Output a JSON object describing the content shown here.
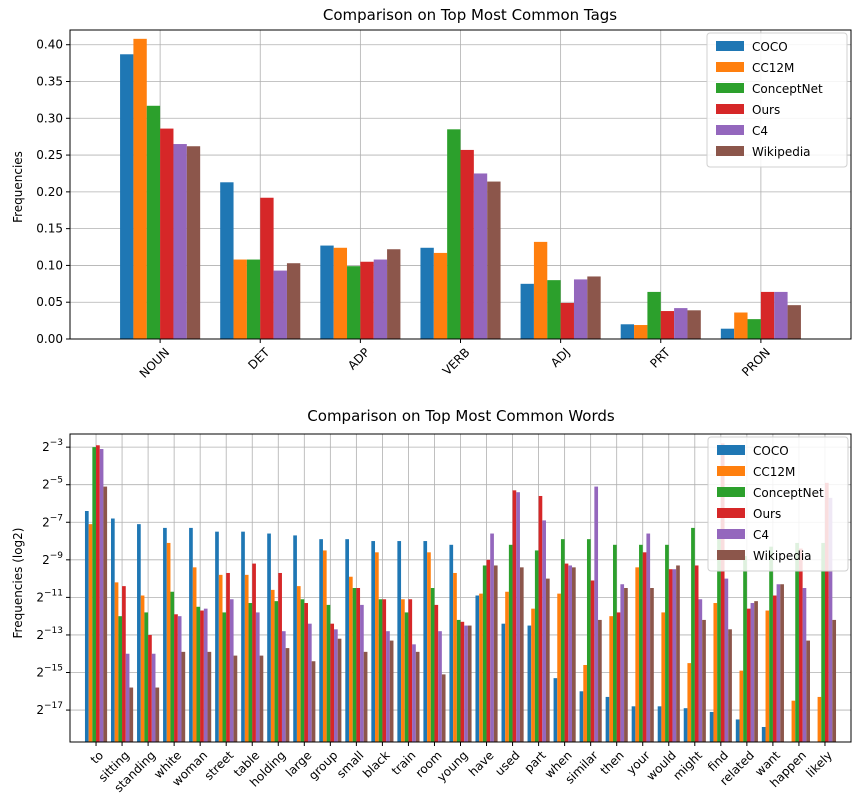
{
  "chart_data": [
    {
      "type": "bar",
      "title": "Comparison on Top Most Common Tags",
      "xlabel": "",
      "ylabel": "Frequencies",
      "categories": [
        "NOUN",
        "DET",
        "ADP",
        "VERB",
        "ADJ",
        "PRT",
        "PRON"
      ],
      "ylim": [
        0,
        0.42
      ],
      "yticks": [
        0.0,
        0.05,
        0.1,
        0.15,
        0.2,
        0.25,
        0.3,
        0.35,
        0.4
      ],
      "ytick_labels": [
        "0.00",
        "0.05",
        "0.10",
        "0.15",
        "0.20",
        "0.25",
        "0.30",
        "0.35",
        "0.40"
      ],
      "grid": true,
      "legend": "top-right",
      "series": [
        {
          "name": "COCO",
          "color": "#1f77b4",
          "values": [
            0.387,
            0.213,
            0.127,
            0.124,
            0.075,
            0.02,
            0.014
          ]
        },
        {
          "name": "CC12M",
          "color": "#ff7f0e",
          "values": [
            0.408,
            0.108,
            0.124,
            0.117,
            0.132,
            0.019,
            0.036
          ]
        },
        {
          "name": "ConceptNet",
          "color": "#2ca02c",
          "values": [
            0.317,
            0.108,
            0.099,
            0.285,
            0.08,
            0.064,
            0.027
          ]
        },
        {
          "name": "Ours",
          "color": "#d62728",
          "values": [
            0.286,
            0.192,
            0.105,
            0.257,
            0.049,
            0.038,
            0.064
          ]
        },
        {
          "name": "C4",
          "color": "#9467bd",
          "values": [
            0.265,
            0.093,
            0.108,
            0.225,
            0.081,
            0.042,
            0.064
          ]
        },
        {
          "name": "Wikipedia",
          "color": "#8c564b",
          "values": [
            0.262,
            0.103,
            0.122,
            0.214,
            0.085,
            0.039,
            0.046
          ]
        }
      ]
    },
    {
      "type": "bar",
      "title": "Comparison on Top Most Common Words",
      "xlabel": "",
      "ylabel": "Frequencies (log2)",
      "yscale": "log2",
      "categories": [
        "to",
        "sitting",
        "standing",
        "white",
        "woman",
        "street",
        "table",
        "holding",
        "large",
        "group",
        "small",
        "black",
        "train",
        "room",
        "young",
        "have",
        "used",
        "part",
        "when",
        "similar",
        "then",
        "your",
        "would",
        "might",
        "find",
        "related",
        "want",
        "happen",
        "likely"
      ],
      "ylim_exponent": [
        -18.7,
        -2.3
      ],
      "ytick_exponents": [
        -3,
        -5,
        -7,
        -9,
        -11,
        -13,
        -15,
        -17
      ],
      "ytick_base": "2",
      "grid": true,
      "legend": "top-right",
      "series_exponents_note": "values are log2 of frequency",
      "series": [
        {
          "name": "COCO",
          "color": "#1f77b4",
          "values": [
            -6.4,
            -6.8,
            -7.1,
            -7.3,
            -7.3,
            -7.5,
            -7.5,
            -7.6,
            -7.7,
            -7.9,
            -7.9,
            -8.0,
            -8.0,
            -8.0,
            -8.2,
            -10.9,
            -12.4,
            -12.5,
            -15.3,
            -16.0,
            -16.3,
            -16.8,
            -16.8,
            -16.9,
            -17.1,
            -17.5,
            -17.9,
            -18.9,
            -18.9
          ]
        },
        {
          "name": "CC12M",
          "color": "#ff7f0e",
          "values": [
            -7.1,
            -10.2,
            -10.9,
            -8.1,
            -9.4,
            -9.8,
            -9.8,
            -10.6,
            -10.4,
            -8.5,
            -9.9,
            -8.6,
            -11.1,
            -8.6,
            -9.7,
            -10.8,
            -10.7,
            -11.6,
            -10.8,
            -14.6,
            -12.0,
            -9.4,
            -11.8,
            -14.5,
            -11.3,
            -14.9,
            -11.7,
            -16.5,
            -16.3
          ]
        },
        {
          "name": "ConceptNet",
          "color": "#2ca02c",
          "values": [
            -3.0,
            -12.0,
            -11.8,
            -10.7,
            -11.5,
            -11.8,
            -11.3,
            -11.2,
            -11.1,
            -11.4,
            -10.5,
            -11.1,
            -11.8,
            -10.5,
            -12.2,
            -9.3,
            -8.2,
            -8.5,
            -7.9,
            -7.9,
            -8.2,
            -8.2,
            -8.2,
            -7.3,
            -7.4,
            -8.8,
            -8.3,
            -8.1,
            -8.1
          ]
        },
        {
          "name": "Ours",
          "color": "#d62728",
          "values": [
            -2.9,
            -10.4,
            -13.0,
            -11.9,
            -11.7,
            -9.7,
            -9.2,
            -9.7,
            -11.3,
            -12.4,
            -10.5,
            -11.1,
            -11.1,
            -11.4,
            -12.3,
            -9.0,
            -5.3,
            -5.6,
            -9.2,
            -10.1,
            -11.8,
            -8.6,
            -9.5,
            -9.3,
            -2.8,
            -11.6,
            -10.9,
            -8.4,
            -4.9
          ]
        },
        {
          "name": "C4",
          "color": "#9467bd",
          "values": [
            -3.1,
            -14.0,
            -14.0,
            -12.0,
            -11.6,
            -11.1,
            -11.8,
            -12.8,
            -12.4,
            -12.7,
            -11.4,
            -12.8,
            -13.5,
            -12.8,
            -12.5,
            -7.6,
            -5.4,
            -6.9,
            -9.3,
            -5.1,
            -10.3,
            -7.6,
            -9.5,
            -11.1,
            -10.0,
            -11.3,
            -10.3,
            -10.5,
            -5.7
          ]
        },
        {
          "name": "Wikipedia",
          "color": "#8c564b",
          "values": [
            -5.1,
            -15.8,
            -15.8,
            -13.9,
            -13.9,
            -14.1,
            -14.1,
            -13.7,
            -14.4,
            -13.2,
            -13.9,
            -13.3,
            -13.9,
            -15.1,
            -12.5,
            -9.3,
            -9.4,
            -10.0,
            -9.4,
            -12.2,
            -10.5,
            -10.5,
            -9.3,
            -12.2,
            -12.7,
            -11.2,
            -10.3,
            -13.3,
            -12.2
          ]
        }
      ]
    }
  ]
}
